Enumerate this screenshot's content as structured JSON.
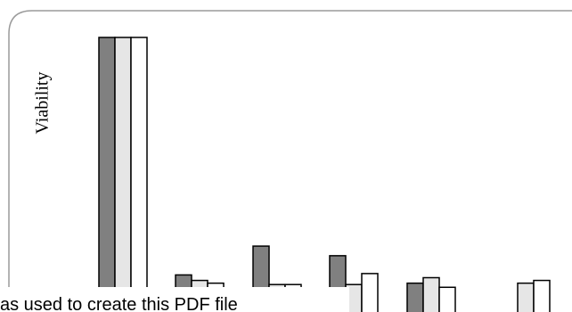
{
  "chart_data": {
    "type": "bar",
    "ylabel": "Viability",
    "xlabel": "",
    "title": "",
    "categories": [
      "",
      "",
      "",
      "",
      "",
      ""
    ],
    "series": [
      {
        "color": "#808080",
        "values": [
          100,
          13.5,
          24,
          20.5,
          10.5,
          null
        ]
      },
      {
        "color": "#e6e6e6",
        "values": [
          100,
          11.5,
          10,
          10,
          12.5,
          10.5
        ]
      },
      {
        "color": "#ffffff",
        "values": [
          100,
          10.5,
          10,
          14,
          9,
          11.5
        ]
      }
    ],
    "ylim": [
      0,
      110
    ],
    "grid": false,
    "legend": false
  },
  "overlay_text": "as used to create this PDF file"
}
